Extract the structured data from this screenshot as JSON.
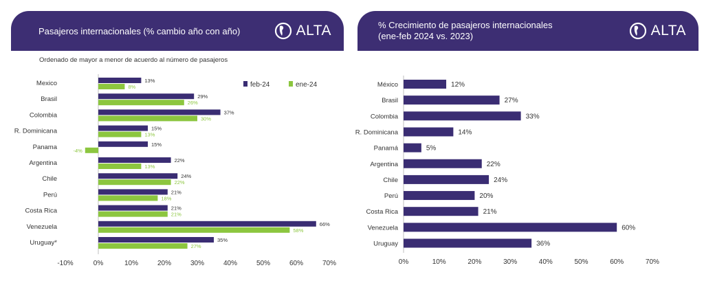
{
  "left_panel": {
    "header_title": "Pasajeros internacionales (% cambio año con año)",
    "logo_text": "ALTA",
    "subtitle": "Ordenado de mayor a menor de acuerdo al número de pasajeros"
  },
  "right_panel": {
    "header_title_line1": "% Crecimiento de pasajeros internacionales",
    "header_title_line2": "(ene-feb 2024 vs. 2023)",
    "logo_text": "ALTA"
  },
  "colors": {
    "header_bg": "#3d2e73",
    "feb": "#3a2d73",
    "ene": "#8cc63f",
    "axis": "#bfbfbf"
  },
  "chart_data": [
    {
      "type": "bar",
      "orientation": "horizontal",
      "categories": [
        "Mexico",
        "Brasil",
        "Colombia",
        "R. Dominicana",
        "Panama",
        "Argentina",
        "Chile",
        "Perú",
        "Costa Rica",
        "Venezuela",
        "Uruguay*"
      ],
      "series": [
        {
          "name": "feb-24",
          "values": [
            13,
            29,
            37,
            15,
            15,
            22,
            24,
            21,
            21,
            66,
            35
          ],
          "labels": [
            "13%",
            "29%",
            "37%",
            "15%",
            "15%",
            "22%",
            "24%",
            "21%",
            "21%",
            "66%",
            "35%"
          ]
        },
        {
          "name": "ene-24",
          "values": [
            8,
            26,
            30,
            13,
            -4,
            13,
            22,
            18,
            21,
            58,
            27
          ],
          "labels": [
            "8%",
            "26%",
            "30%",
            "13%",
            "-4%",
            "13%",
            "22%",
            "18%",
            "21%",
            "58%",
            "27%"
          ]
        }
      ],
      "xlim": [
        -10,
        70
      ],
      "ticks": [
        -10,
        0,
        10,
        20,
        30,
        40,
        50,
        60,
        70
      ],
      "tick_labels": [
        "-10%",
        "0%",
        "10%",
        "20%",
        "30%",
        "40%",
        "50%",
        "60%",
        "70%"
      ],
      "legend_position": "top-right",
      "grid": false
    },
    {
      "type": "bar",
      "orientation": "horizontal",
      "categories": [
        "México",
        "Brasil",
        "Colombia",
        "R. Dominicana",
        "Panamá",
        "Argentina",
        "Chile",
        "Perú",
        "Costa Rica",
        "Venezuela",
        "Uruguay"
      ],
      "series": [
        {
          "values": [
            12,
            27,
            33,
            14,
            5,
            22,
            24,
            20,
            21,
            60,
            36
          ],
          "labels": [
            "12%",
            "27%",
            "33%",
            "14%",
            "5%",
            "22%",
            "24%",
            "20%",
            "21%",
            "60%",
            "36%"
          ]
        }
      ],
      "xlim": [
        0,
        70
      ],
      "ticks": [
        0,
        10,
        20,
        30,
        40,
        50,
        60,
        70
      ],
      "tick_labels": [
        "0%",
        "10%",
        "20%",
        "30%",
        "40%",
        "50%",
        "60%",
        "70%"
      ],
      "grid": false
    }
  ]
}
